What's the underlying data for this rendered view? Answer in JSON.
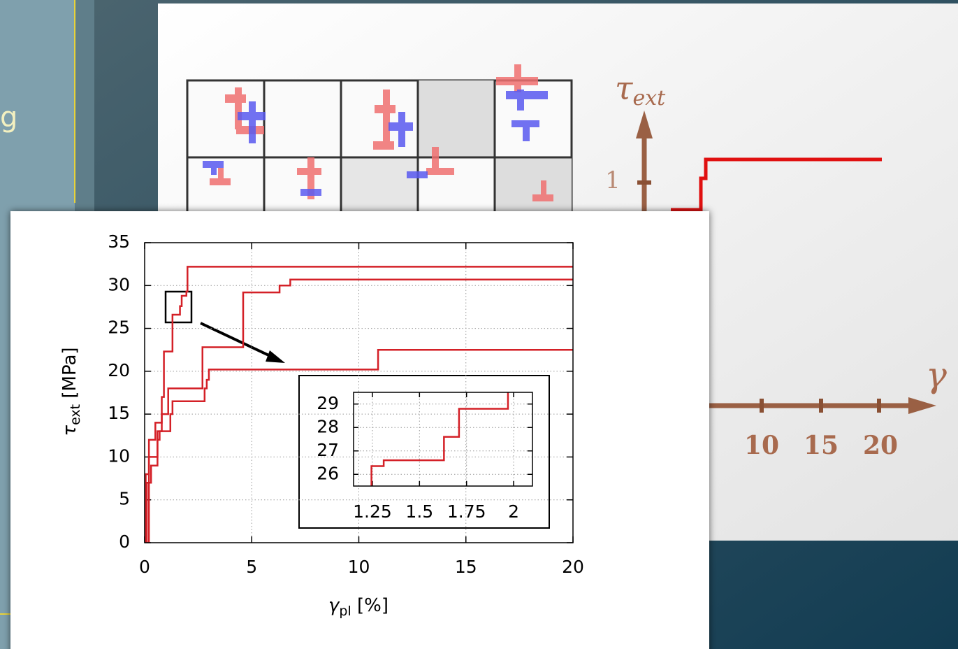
{
  "slide": {
    "fragment": "g"
  },
  "schematic": {
    "y_label": [
      "τ",
      "ext"
    ],
    "ytick": "1",
    "xticks": [
      "10",
      "15",
      "20"
    ],
    "x_label": "γ"
  },
  "chart_data": [
    {
      "type": "line",
      "xlabel": [
        "γ",
        "pl",
        " [%]"
      ],
      "ylabel": [
        "τ",
        "ext",
        " [MPa]"
      ],
      "xlim": [
        0,
        20
      ],
      "ylim": [
        0,
        35
      ],
      "xticks": [
        0,
        5,
        10,
        15,
        20
      ],
      "yticks": [
        0,
        5,
        10,
        15,
        20,
        25,
        30,
        35
      ],
      "grid": true,
      "series": [
        {
          "color": "#d42027",
          "x": [
            0,
            0.05,
            0.05,
            0.2,
            0.2,
            0.5,
            0.5,
            0.8,
            0.8,
            0.9,
            0.9,
            1.3,
            1.3,
            1.65,
            1.65,
            1.73,
            1.73,
            1.95,
            1.95,
            2.0,
            2.0,
            20
          ],
          "values": [
            0,
            0,
            8,
            8,
            12,
            12,
            14,
            14,
            17,
            17,
            22.3,
            22.3,
            26.6,
            26.6,
            27.6,
            27.6,
            28.8,
            28.8,
            29.3,
            29.3,
            32.2,
            32.2
          ]
        },
        {
          "color": "#d42027",
          "x": [
            0,
            0.1,
            0.1,
            0.3,
            0.3,
            0.6,
            0.6,
            0.8,
            0.8,
            1.1,
            1.1,
            2.7,
            2.7,
            4.6,
            4.6,
            6.3,
            6.3,
            6.8,
            6.8,
            20
          ],
          "values": [
            0,
            0,
            7,
            7,
            9,
            9,
            13,
            13,
            15,
            15,
            18,
            18,
            22.8,
            22.8,
            29.2,
            29.2,
            30,
            30,
            30.7,
            30.7
          ]
        },
        {
          "color": "#d42027",
          "x": [
            0,
            0.2,
            0.2,
            0.6,
            0.6,
            0.7,
            0.7,
            1.2,
            1.2,
            1.3,
            1.3,
            2.8,
            2.8,
            2.9,
            2.9,
            3.0,
            3.0,
            10.9,
            10.9,
            20
          ],
          "values": [
            0,
            0,
            10,
            10,
            12,
            12,
            13,
            13,
            15,
            15,
            16.5,
            16.5,
            18,
            18,
            19,
            19,
            20.2,
            20.2,
            22.5,
            22.5
          ]
        }
      ]
    },
    {
      "type": "line",
      "xlim": [
        1.15,
        2.1
      ],
      "ylim": [
        25.5,
        29.5
      ],
      "xticks": [
        1.25,
        1.5,
        1.75,
        2
      ],
      "yticks": [
        26,
        27,
        28,
        29
      ],
      "grid": true,
      "series": [
        {
          "color": "#d42027",
          "x": [
            1.245,
            1.245,
            1.31,
            1.31,
            1.63,
            1.63,
            1.71,
            1.71,
            1.97,
            1.97
          ],
          "values": [
            25.5,
            26.35,
            26.35,
            26.6,
            26.6,
            27.6,
            27.6,
            28.8,
            28.8,
            29.5
          ]
        }
      ]
    }
  ]
}
